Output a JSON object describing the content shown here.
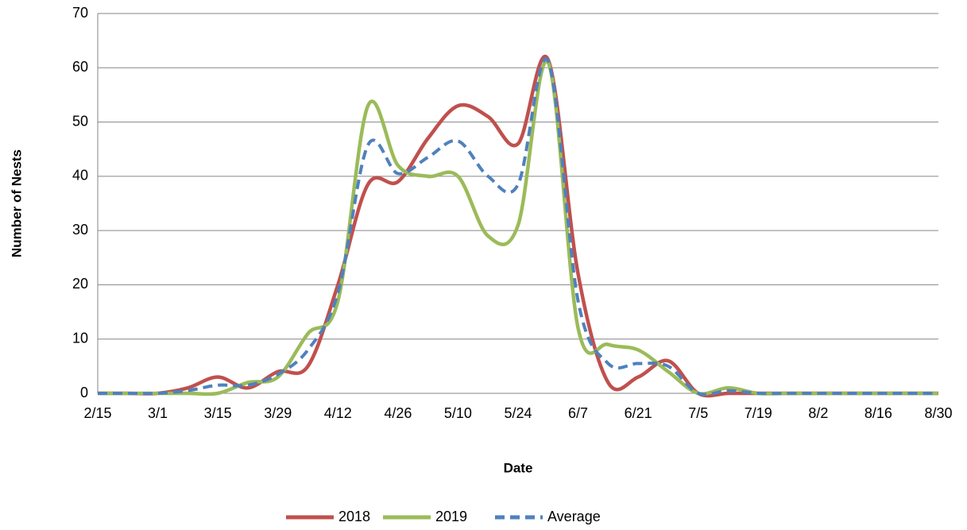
{
  "chart_data": {
    "type": "line",
    "x_label": "Date",
    "y_label": "Number of Nests",
    "categories": [
      "2/15",
      null,
      "3/1",
      null,
      "3/15",
      null,
      "3/29",
      null,
      "4/12",
      null,
      "4/26",
      null,
      "5/10",
      null,
      "5/24",
      null,
      "6/7",
      null,
      "6/21",
      null,
      "7/5",
      null,
      "7/19",
      null,
      "8/2",
      null,
      "8/16",
      null,
      "8/30"
    ],
    "series": [
      {
        "name": "2018",
        "color": "#c0504d",
        "dashed": false,
        "values": [
          0,
          0,
          0,
          1,
          3,
          1,
          4,
          5,
          20,
          38.5,
          39,
          47,
          53,
          51,
          46,
          61.5,
          22,
          2,
          3,
          6,
          0,
          0,
          0,
          0,
          0,
          0,
          0,
          0,
          0
        ]
      },
      {
        "name": "2019",
        "color": "#9bbb59",
        "dashed": false,
        "values": [
          0,
          0,
          0,
          0,
          0,
          2,
          3,
          11,
          17,
          53,
          42,
          40,
          40,
          29,
          31,
          61,
          12,
          9,
          8,
          4,
          0,
          1,
          0,
          0,
          0,
          0,
          0,
          0,
          0
        ]
      },
      {
        "name": "Average",
        "color": "#4f81bd",
        "dashed": true,
        "values": [
          0,
          0,
          0,
          0.5,
          1.5,
          1.5,
          3.5,
          8,
          18.5,
          45.75,
          40.5,
          43.5,
          46.5,
          40,
          38.5,
          61.25,
          17,
          5.5,
          5.5,
          5,
          0,
          0.5,
          0,
          0,
          0,
          0,
          0,
          0,
          0
        ]
      }
    ],
    "ylim": [
      0,
      70
    ],
    "yticks": [
      0,
      10,
      20,
      30,
      40,
      50,
      60,
      70
    ],
    "grid": true,
    "legend": "bottom"
  }
}
